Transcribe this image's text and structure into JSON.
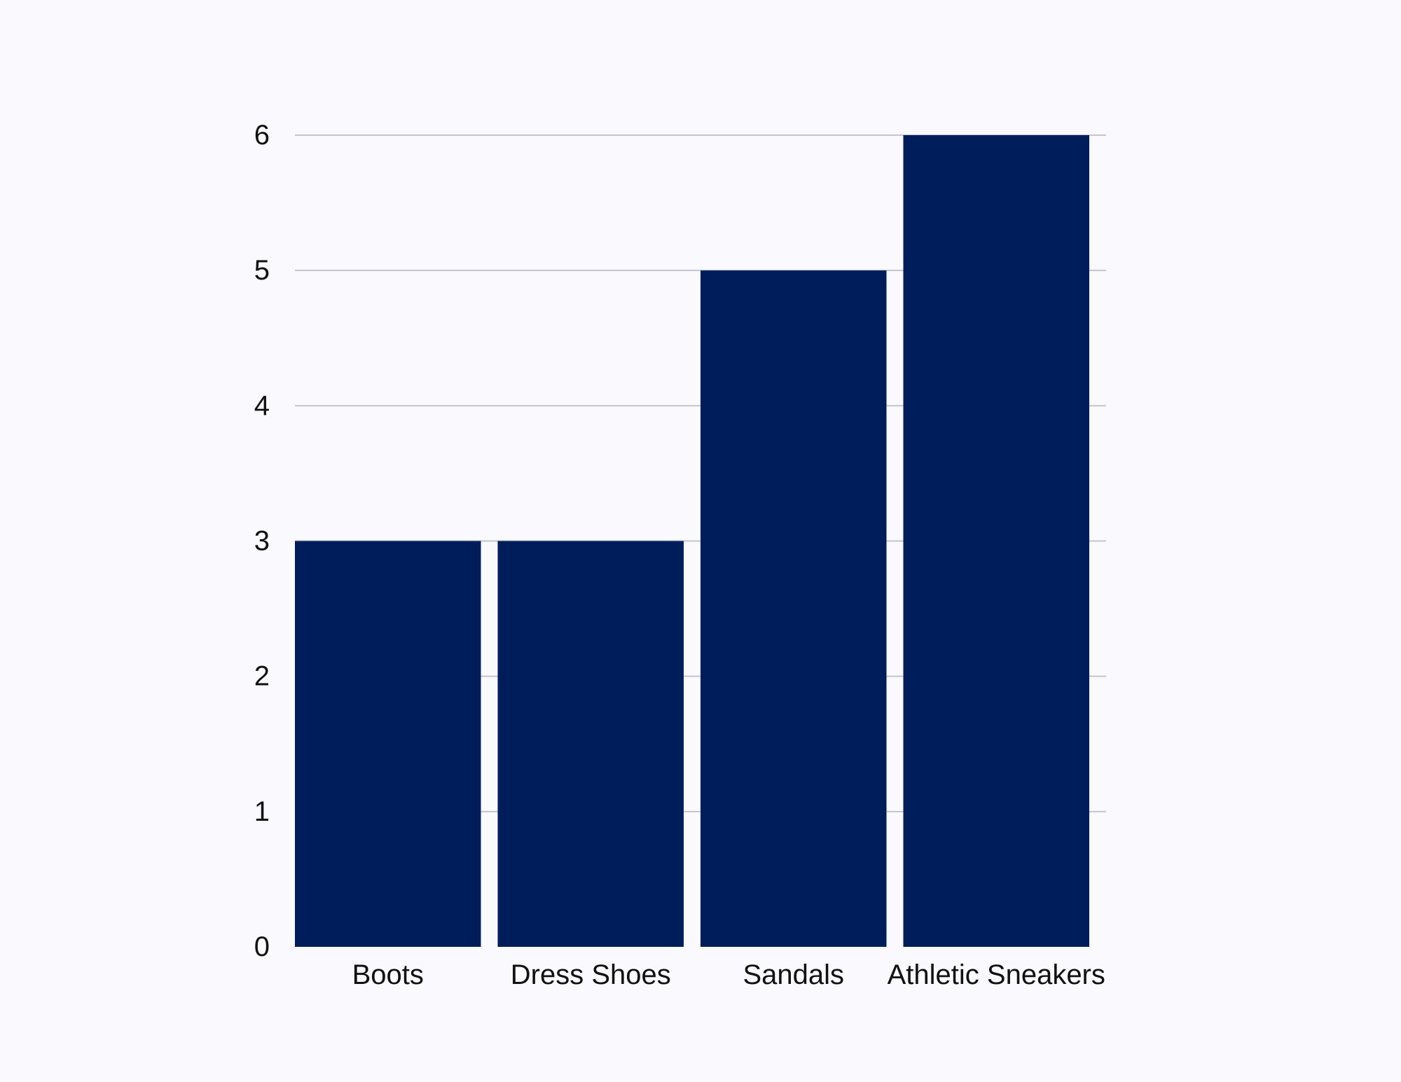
{
  "chart_data": {
    "type": "bar",
    "categories": [
      "Boots",
      "Dress Shoes",
      "Sandals",
      "Athletic Sneakers"
    ],
    "values": [
      3,
      3,
      5,
      6
    ],
    "title": "",
    "xlabel": "",
    "ylabel": "",
    "ylim": [
      0,
      6
    ],
    "yticks": [
      "0",
      "1",
      "2",
      "3",
      "4",
      "5",
      "6"
    ],
    "grid": true,
    "legend": "none",
    "colors": {
      "bar": "#001d5b",
      "grid": "#c4c4cc",
      "text": "#111111",
      "background": "#f9f9fe"
    }
  }
}
